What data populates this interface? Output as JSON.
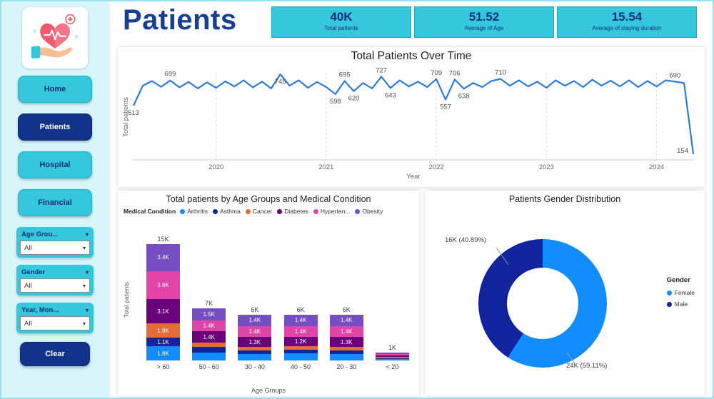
{
  "app": {
    "title": "Patients"
  },
  "sidebar": {
    "nav": [
      {
        "label": "Home",
        "active": false
      },
      {
        "label": "Patients",
        "active": true
      },
      {
        "label": "Hospital",
        "active": false
      },
      {
        "label": "Financial",
        "active": false
      }
    ],
    "slicers": [
      {
        "label": "Age Grou...",
        "value": "All"
      },
      {
        "label": "Gender",
        "value": "All"
      },
      {
        "label": "Year, Mon...",
        "value": "All"
      }
    ],
    "clear_label": "Clear"
  },
  "kpis": [
    {
      "value": "40K",
      "label": "Total patients"
    },
    {
      "value": "51.52",
      "label": "Average of Age"
    },
    {
      "value": "15.54",
      "label": "Average of staying duration"
    }
  ],
  "colors": {
    "accent_cyan": "#35C7DB",
    "accent_navy": "#12338A",
    "title_blue": "#173F96",
    "sidebar_bg": "#D8F6FA",
    "line_blue": "#2E7CD6"
  },
  "chart_data": [
    {
      "type": "line",
      "title": "Total Patients Over Time",
      "xlabel": "Year",
      "ylabel": "Total patients",
      "color": "#2E7CD6",
      "x_ticks": [
        "2020",
        "2021",
        "2022",
        "2023",
        "2024"
      ],
      "tick_indices": [
        9,
        21,
        33,
        45,
        57
      ],
      "values": [
        513,
        660,
        695,
        652,
        699,
        648,
        688,
        640,
        685,
        645,
        692,
        655,
        700,
        648,
        690,
        640,
        745,
        660,
        700,
        645,
        688,
        650,
        598,
        695,
        620,
        680,
        640,
        727,
        643,
        700,
        655,
        690,
        650,
        709,
        557,
        706,
        638,
        680,
        650,
        695,
        710,
        660,
        700,
        655,
        690,
        645,
        700,
        660,
        695,
        650,
        705,
        660,
        698,
        655,
        700,
        650,
        695,
        655,
        700,
        690,
        680,
        154
      ],
      "labeled_points": [
        {
          "index": 0,
          "pos": "below"
        },
        {
          "index": 4,
          "pos": "above"
        },
        {
          "index": 16,
          "pos": "below"
        },
        {
          "index": 22,
          "pos": "below"
        },
        {
          "index": 23,
          "pos": "above"
        },
        {
          "index": 24,
          "pos": "below"
        },
        {
          "index": 27,
          "pos": "above"
        },
        {
          "index": 28,
          "pos": "below"
        },
        {
          "index": 33,
          "pos": "above"
        },
        {
          "index": 34,
          "pos": "below"
        },
        {
          "index": 35,
          "pos": "above"
        },
        {
          "index": 36,
          "pos": "below"
        },
        {
          "index": 40,
          "pos": "above"
        },
        {
          "index": 59,
          "pos": "above"
        },
        {
          "index": 61,
          "pos": "left"
        }
      ],
      "grid": "vertical-dashed",
      "legend_position": "none"
    },
    {
      "type": "bar",
      "title": "Total patients by Age Groups and Medical Condition",
      "legend_title": "Medical Condition",
      "legend_position": "top",
      "xlabel": "Age Groups",
      "ylabel": "Total patients",
      "categories": [
        "> 60",
        "50 - 60",
        "30 - 40",
        "40 - 50",
        "20 - 30",
        "< 20"
      ],
      "totals": [
        "15K",
        "7K",
        "6K",
        "6K",
        "6K",
        "1K"
      ],
      "ymax": 15,
      "label_threshold": 1.05,
      "series": [
        {
          "name": "Arthritis",
          "color": "#118DFF",
          "values": [
            1.8,
            1.0,
            0.8,
            0.9,
            0.8,
            0.2
          ]
        },
        {
          "name": "Asthma",
          "color": "#12239E",
          "values": [
            1.1,
            0.7,
            0.5,
            0.5,
            0.5,
            0.12
          ]
        },
        {
          "name": "Cancer",
          "color": "#E66C37",
          "values": [
            1.8,
            0.6,
            0.4,
            0.4,
            0.4,
            0.1
          ]
        },
        {
          "name": "Diabetes",
          "color": "#6B007B",
          "values": [
            3.1,
            1.4,
            1.3,
            1.2,
            1.3,
            0.2
          ]
        },
        {
          "name": "Hyperten...",
          "color": "#E044A7",
          "values": [
            3.6,
            1.4,
            1.4,
            1.4,
            1.4,
            0.22
          ]
        },
        {
          "name": "Obesity",
          "color": "#744EC2",
          "values": [
            3.4,
            1.5,
            1.4,
            1.4,
            1.4,
            0.16
          ]
        }
      ]
    },
    {
      "type": "pie",
      "title": "Patients Gender Distribution",
      "legend_title": "Gender",
      "legend_position": "right",
      "slices": [
        {
          "name": "Female",
          "value": "24K",
          "pct": 59.11,
          "color": "#118DFF",
          "label": "24K (59.11%)"
        },
        {
          "name": "Male",
          "value": "16K",
          "pct": 40.89,
          "color": "#12239E",
          "label": "16K (40.89%)"
        }
      ]
    }
  ]
}
